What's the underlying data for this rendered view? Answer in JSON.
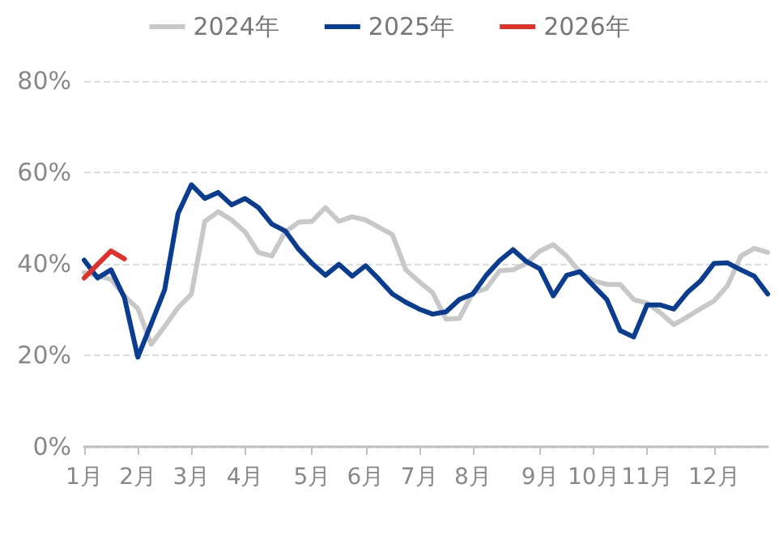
{
  "chart_data": {
    "type": "line",
    "categories": [
      "1月",
      null,
      null,
      null,
      "2月",
      null,
      null,
      null,
      "3月",
      null,
      null,
      null,
      "4月",
      null,
      null,
      null,
      null,
      "5月",
      null,
      null,
      null,
      "6月",
      null,
      null,
      null,
      "7月",
      null,
      null,
      null,
      "8月",
      null,
      null,
      null,
      null,
      "9月",
      null,
      null,
      null,
      "10月",
      null,
      null,
      null,
      "11月",
      null,
      null,
      null,
      null,
      "12月",
      null,
      null,
      null,
      null
    ],
    "series": [
      {
        "name": "2024年",
        "color": "#c8c8c8",
        "values": [
          38.1,
          37.4,
          36.6,
          33.0,
          30.2,
          22.4,
          26.3,
          30.4,
          33.4,
          49.3,
          51.4,
          49.6,
          47.0,
          42.5,
          41.7,
          47.0,
          49.1,
          49.3,
          52.3,
          49.3,
          50.3,
          49.6,
          48.0,
          46.4,
          38.7,
          36.1,
          33.7,
          27.9,
          28.1,
          33.7,
          34.6,
          38.5,
          38.7,
          40.1,
          42.8,
          44.2,
          41.7,
          38.1,
          36.3,
          35.5,
          35.5,
          32.2,
          31.4,
          29.3,
          26.7,
          28.4,
          30.2,
          31.9,
          35.2,
          41.7,
          43.4,
          42.5
        ]
      },
      {
        "name": "2025年",
        "color": "#0a3d8f",
        "values": [
          40.8,
          36.9,
          38.7,
          32.6,
          19.6,
          26.9,
          34.3,
          51.0,
          57.3,
          54.3,
          55.6,
          52.9,
          54.3,
          52.3,
          48.7,
          47.2,
          43.2,
          40.1,
          37.5,
          39.9,
          37.3,
          39.6,
          36.6,
          33.4,
          31.6,
          30.1,
          29.0,
          29.5,
          32.2,
          33.4,
          37.5,
          40.7,
          43.1,
          40.5,
          38.9,
          33.0,
          37.5,
          38.3,
          35.2,
          32.2,
          25.4,
          24.0,
          31.0,
          31.0,
          30.1,
          33.7,
          36.3,
          40.1,
          40.2,
          38.7,
          37.3,
          33.4
        ]
      },
      {
        "name": "2026年",
        "color": "#e0302a",
        "values": [
          36.9,
          39.9,
          42.8,
          41.1,
          null,
          null,
          null,
          null,
          null,
          null,
          null,
          null,
          null,
          null,
          null,
          null,
          null,
          null,
          null,
          null,
          null,
          null,
          null,
          null,
          null,
          null,
          null,
          null,
          null,
          null,
          null,
          null,
          null,
          null,
          null,
          null,
          null,
          null,
          null,
          null,
          null,
          null,
          null,
          null,
          null,
          null,
          null,
          null,
          null,
          null,
          null,
          null
        ]
      }
    ],
    "ylim": [
      0,
      80
    ],
    "yticks": [
      {
        "value": 0,
        "label": "0%"
      },
      {
        "value": 20,
        "label": "20%"
      },
      {
        "value": 40,
        "label": "40%"
      },
      {
        "value": 60,
        "label": "60%"
      },
      {
        "value": 80,
        "label": "80%"
      }
    ],
    "grid": "y",
    "legend": "top",
    "marker": "none",
    "line_style": "solid"
  }
}
